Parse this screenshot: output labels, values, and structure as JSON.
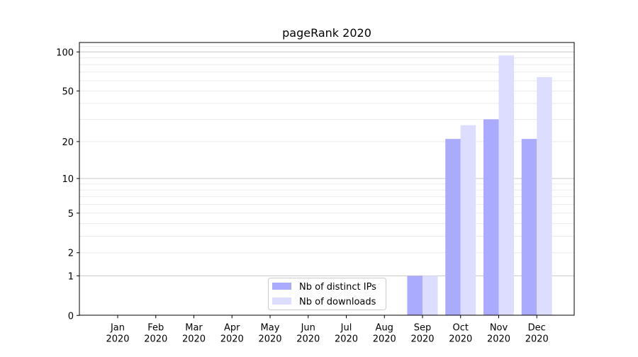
{
  "chart_data": {
    "type": "bar",
    "title": "pageRank 2020",
    "xlabel": "",
    "ylabel": "",
    "y_scale": "log(1+y)",
    "ylim": [
      0,
      130
    ],
    "grid": "horizontal major and minor",
    "legend_position": "bottom-center",
    "categories": [
      "Jan\n2020",
      "Feb\n2020",
      "Mar\n2020",
      "Apr\n2020",
      "May\n2020",
      "Jun\n2020",
      "Jul\n2020",
      "Aug\n2020",
      "Sep\n2020",
      "Oct\n2020",
      "Nov\n2020",
      "Dec\n2020"
    ],
    "y_ticks": [
      0,
      1,
      2,
      5,
      10,
      20,
      50,
      100
    ],
    "series": [
      {
        "name": "Nb of distinct IPs",
        "color": "#aaaaff",
        "values": [
          0,
          0,
          0,
          0,
          0,
          0,
          0,
          0,
          1,
          21,
          30,
          21
        ]
      },
      {
        "name": "Nb of downloads",
        "color": "#ddddff",
        "values": [
          0,
          0,
          0,
          0,
          0,
          0,
          0,
          0,
          1,
          27,
          94,
          64
        ]
      }
    ]
  }
}
